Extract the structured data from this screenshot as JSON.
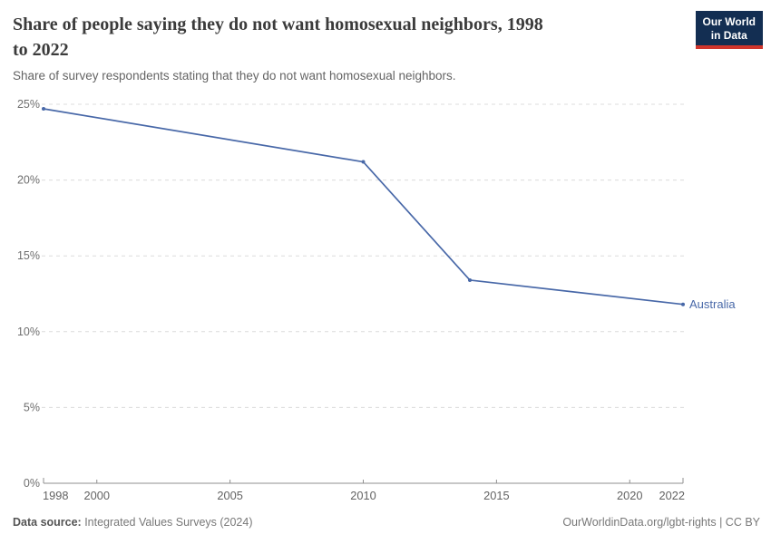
{
  "header": {
    "title": "Share of people saying they do not want homosexual neighbors, 1998 to 2022",
    "title_lines": [
      "Share of people saying they do not want homosexual neighbors, 1998",
      "to 2022"
    ],
    "subtitle": "Share of survey respondents stating that they do not want homosexual neighbors.",
    "logo": {
      "line1": "Our World",
      "line2": "in Data",
      "bg_color": "#132E52",
      "accent_color": "#D0352C"
    }
  },
  "chart_data": {
    "type": "line",
    "title": "Share of people saying they do not want homosexual neighbors, 1998 to 2022",
    "xlabel": "",
    "ylabel": "",
    "xlim": [
      1998,
      2022
    ],
    "ylim": [
      0,
      25
    ],
    "grid": "horizontal-dashed",
    "legend_position": "end-of-line-label",
    "x_ticks": [
      1998,
      2000,
      2005,
      2010,
      2015,
      2020,
      2022
    ],
    "y_ticks": [
      0,
      5,
      10,
      15,
      20,
      25
    ],
    "y_tick_labels": [
      "0%",
      "5%",
      "10%",
      "15%",
      "20%",
      "25%"
    ],
    "series": [
      {
        "name": "Australia",
        "color": "#4868A8",
        "points": [
          [
            1998,
            24.7
          ],
          [
            2010,
            21.2
          ],
          [
            2014,
            13.4
          ],
          [
            2022,
            11.8
          ]
        ]
      }
    ],
    "colors": {
      "gridline": "#dcdcdc",
      "axis": "#8f8f8f",
      "tick_label": "#6e6e6e"
    }
  },
  "footer": {
    "source_label": "Data source:",
    "source_value": " Integrated Values Surveys (2024)",
    "rights": "OurWorldinData.org/lgbt-rights | CC BY"
  }
}
